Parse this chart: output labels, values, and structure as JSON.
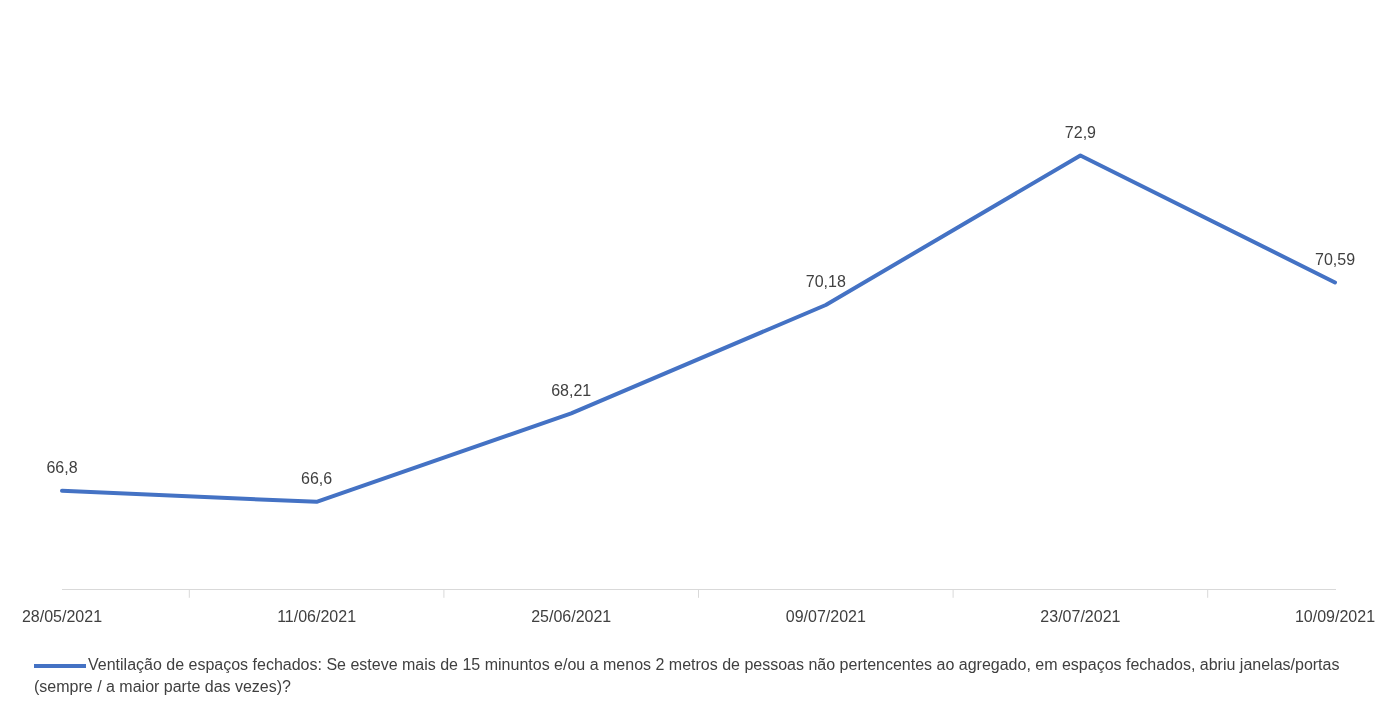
{
  "chart_data": {
    "type": "line",
    "categories": [
      "28/05/2021",
      "11/06/2021",
      "25/06/2021",
      "09/07/2021",
      "23/07/2021",
      "10/09/2021"
    ],
    "series": [
      {
        "name": "Ventilação de espaços fechados: Se esteve mais de 15 minuntos e/ou a menos 2 metros de pessoas não pertencentes ao agregado, em espaços fechados, abriu janelas/portas (sempre / a maior parte das vezes)?",
        "color": "#4472c4",
        "values": [
          66.8,
          66.6,
          68.21,
          70.18,
          72.9,
          70.59
        ],
        "value_labels": [
          "66,8",
          "66,6",
          "68,21",
          "70,18",
          "72,9",
          "70,59"
        ]
      }
    ],
    "tick_labels": "x",
    "grid": false,
    "legend": "bottom",
    "marker": "none",
    "line_style": "solid"
  }
}
